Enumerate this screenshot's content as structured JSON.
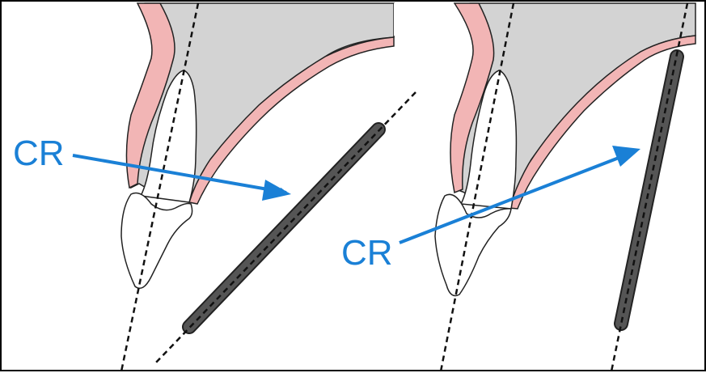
{
  "panels": [
    {
      "id": "left",
      "label": "CR"
    },
    {
      "id": "right",
      "label": "CR"
    }
  ],
  "colors": {
    "bone": "#d3d3d3",
    "gingiva": "#f2b5b5",
    "outline": "#222222",
    "sensor": "#555555",
    "arrow": "#1a80d6",
    "background": "#ffffff"
  }
}
